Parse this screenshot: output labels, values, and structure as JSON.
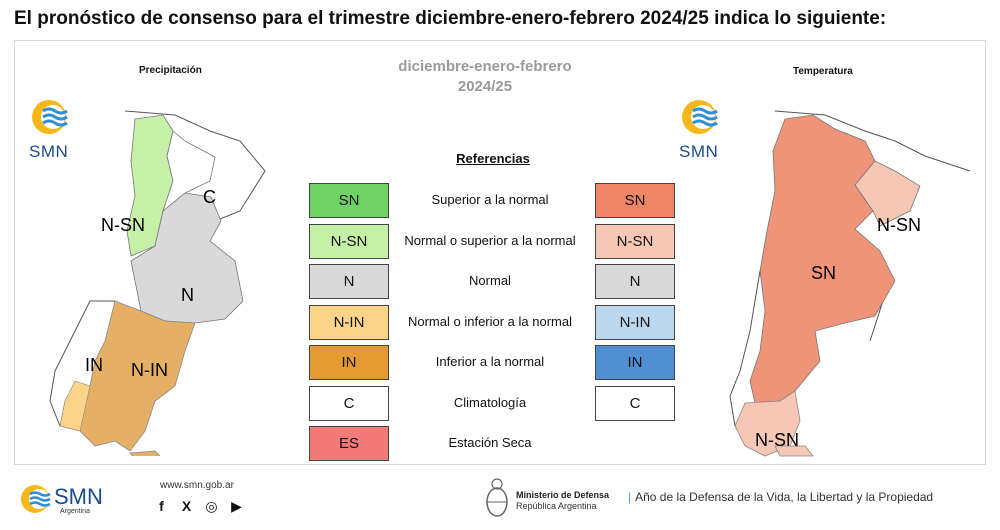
{
  "headline": "El pronóstico de consenso para el trimestre diciembre-enero-febrero 2024/25 indica lo siguiente:",
  "season": {
    "line1": "diciembre-enero-febrero",
    "line2": "2024/25"
  },
  "precip_map": {
    "title": "Precipitación",
    "logo_text": "SMN",
    "labels": [
      "C",
      "N-SN",
      "N",
      "IN",
      "N-IN"
    ]
  },
  "temp_map": {
    "title": "Temperatura",
    "logo_text": "SMN",
    "labels": [
      "N-SN",
      "SN",
      "N-SN"
    ]
  },
  "references": {
    "title": "Referencias",
    "rows": [
      {
        "left": "SN",
        "desc": "Superior a la normal",
        "right": "SN",
        "left_color": "#6fd264",
        "right_color": "#ef8466"
      },
      {
        "left": "N-SN",
        "desc": "Normal o superior a la normal",
        "right": "N-SN",
        "left_color": "#c6efa8",
        "right_color": "#f6c7b4"
      },
      {
        "left": "N",
        "desc": "Normal",
        "right": "N",
        "left_color": "#d9d9d9",
        "right_color": "#d9d9d9"
      },
      {
        "left": "N-IN",
        "desc": "Normal o inferior a la normal",
        "right": "N-IN",
        "left_color": "#fbd48a",
        "right_color": "#bcd8ef"
      },
      {
        "left": "IN",
        "desc": "Inferior a la normal",
        "right": "IN",
        "left_color": "#e59b34",
        "right_color": "#4f8fd2"
      },
      {
        "left": "C",
        "desc": "Climatología",
        "right": "C",
        "left_color": "#ffffff",
        "right_color": "#ffffff"
      },
      {
        "left": "ES",
        "desc": "Estación Seca",
        "left_color": "#f47a7a"
      }
    ]
  },
  "footer": {
    "smn": "SMN",
    "smn_sub": "Argentina",
    "url": "www.smn.gob.ar",
    "social": [
      "f",
      "X",
      "◎",
      "▶"
    ],
    "ministry_1": "Ministerio de Defensa",
    "ministry_2": "República Argentina",
    "year_text": "Año de la Defensa de la Vida, la Libertad y la Propiedad"
  }
}
